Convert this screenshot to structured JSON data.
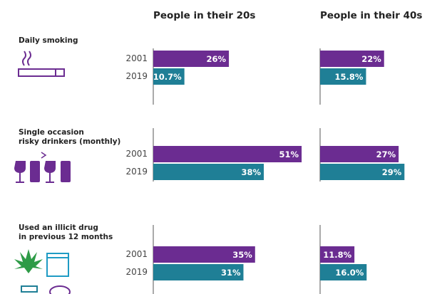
{
  "chart_data": {
    "type": "bar",
    "orientation": "horizontal",
    "panels": [
      "People in their 20s",
      "People in their 40s"
    ],
    "groups": [
      [
        "Daily smoking"
      ],
      [
        "Single occasion",
        "risky drinkers (monthly)"
      ],
      [
        "Used an illicit drug",
        "in previous 12 months"
      ]
    ],
    "series": [
      {
        "name": "2001",
        "color": "#6b2c91",
        "values": [
          [
            26,
            22
          ],
          [
            51,
            27
          ],
          [
            35,
            11.8
          ]
        ],
        "value_labels": [
          [
            "26%",
            "22%"
          ],
          [
            "51%",
            "27%"
          ],
          [
            "35%",
            "11.8%"
          ]
        ]
      },
      {
        "name": "2019",
        "color": "#1f7f96",
        "values": [
          [
            10.7,
            15.8
          ],
          [
            38,
            29
          ],
          [
            31,
            16.0
          ]
        ],
        "value_labels": [
          [
            "10.7%",
            "15.8%"
          ],
          [
            "38%",
            "29%"
          ],
          [
            "31%",
            "16.0%"
          ]
        ]
      }
    ]
  }
}
